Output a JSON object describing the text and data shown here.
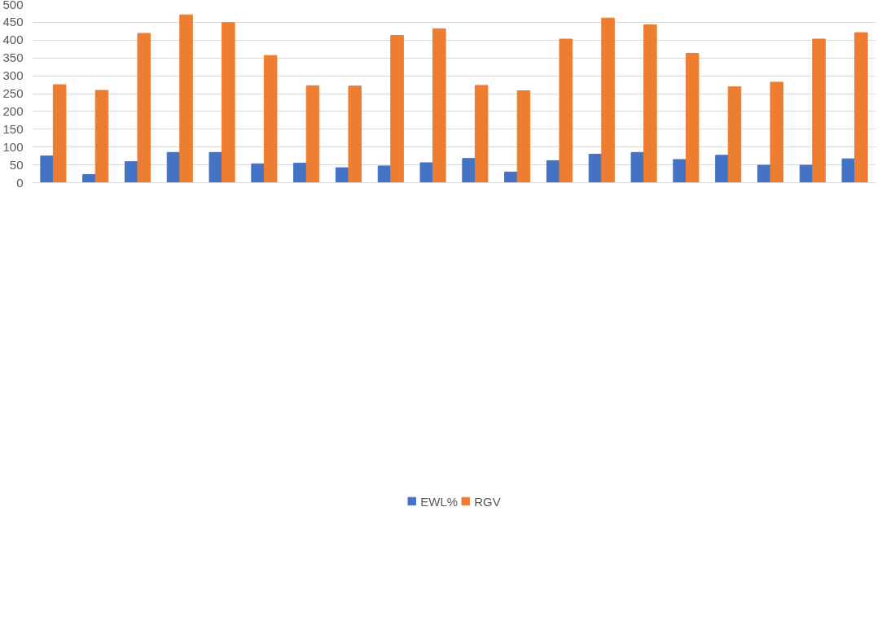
{
  "chart_data": {
    "type": "bar",
    "categories": [
      null,
      null,
      null,
      null,
      null,
      null,
      null,
      null,
      null,
      null,
      null,
      null,
      null,
      null,
      null,
      null,
      null,
      null,
      null,
      null
    ],
    "series": [
      {
        "name": "EWL%",
        "color": "#4472c4",
        "values": [
          75,
          23,
          59,
          85,
          85,
          53,
          55,
          42,
          47,
          56,
          68,
          30,
          62,
          80,
          85,
          65,
          77,
          49,
          49,
          67
        ]
      },
      {
        "name": "RGV",
        "color": "#ed7d31",
        "values": [
          275,
          259,
          419,
          471,
          449,
          357,
          272,
          271,
          413,
          432,
          273,
          258,
          403,
          462,
          443,
          363,
          269,
          282,
          403,
          421
        ]
      }
    ],
    "ylim": [
      0,
      500
    ],
    "yticks": [
      0,
      50,
      100,
      150,
      200,
      250,
      300,
      350,
      400,
      450,
      500
    ],
    "grid": "y",
    "legend": "bottom",
    "tick_labels": "y"
  }
}
